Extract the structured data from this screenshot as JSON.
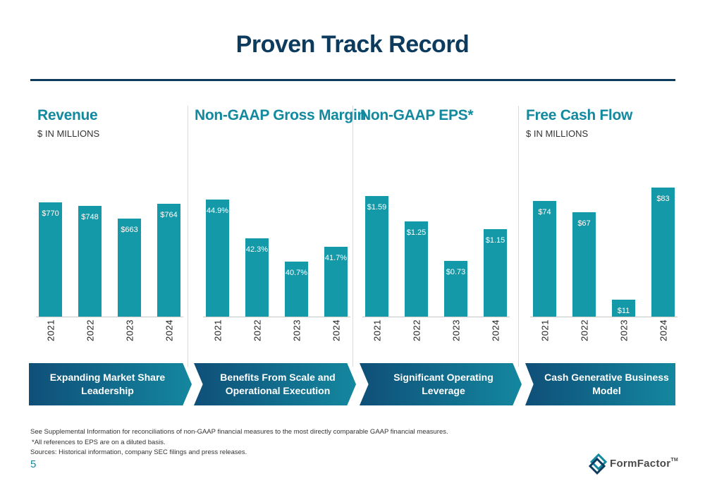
{
  "slide": {
    "title": "Proven Track Record",
    "page_number": "5"
  },
  "chart_data": [
    {
      "type": "bar",
      "title": "Revenue",
      "subtitle": "$ IN MILLIONS",
      "categories": [
        "2021",
        "2022",
        "2023",
        "2024"
      ],
      "values": [
        770,
        748,
        663,
        764
      ],
      "data_labels": [
        "$770",
        "$748",
        "$663",
        "$764"
      ],
      "ylim": [
        0,
        1000
      ]
    },
    {
      "type": "bar",
      "title": "Non-GAAP Gross Margin",
      "categories": [
        "2021",
        "2022",
        "2023",
        "2024"
      ],
      "values": [
        44.9,
        42.3,
        40.7,
        41.7
      ],
      "data_labels": [
        "44.9%",
        "42.3%",
        "40.7%",
        "41.7%"
      ],
      "ylim": [
        37,
        47
      ]
    },
    {
      "type": "bar",
      "title": "Non-GAAP EPS*",
      "categories": [
        "2021",
        "2022",
        "2023",
        "2024"
      ],
      "values": [
        1.59,
        1.25,
        0.73,
        1.15
      ],
      "data_labels": [
        "$1.59",
        "$1.25",
        "$0.73",
        "$1.15"
      ],
      "ylim": [
        0,
        1.95
      ]
    },
    {
      "type": "bar",
      "title": "Free Cash Flow",
      "subtitle": "$ IN MILLIONS",
      "categories": [
        "2021",
        "2022",
        "2023",
        "2024"
      ],
      "values": [
        74,
        67,
        11,
        83
      ],
      "data_labels": [
        "$74",
        "$67",
        "$11",
        "$83"
      ],
      "ylim": [
        0,
        95
      ]
    }
  ],
  "ribbons": [
    "Expanding Market Share Leadership",
    "Benefits From Scale and Operational Execution",
    "Significant Operating Leverage",
    "Cash Generative Business Model"
  ],
  "footnotes": {
    "line1": "See Supplemental Information for reconciliations of non-GAAP financial measures to the most directly comparable GAAP financial measures.",
    "line2": "*All references to EPS are on a diluted basis.",
    "line3": "Sources: Historical information, company SEC filings and press releases."
  },
  "logo": {
    "name": "FormFactor",
    "tm": "TM"
  },
  "colors": {
    "title": "#0d3b5e",
    "accent": "#12899e",
    "bar": "#1499a8",
    "ribbon_start": "#0f4f78",
    "ribbon_end": "#14879f"
  }
}
